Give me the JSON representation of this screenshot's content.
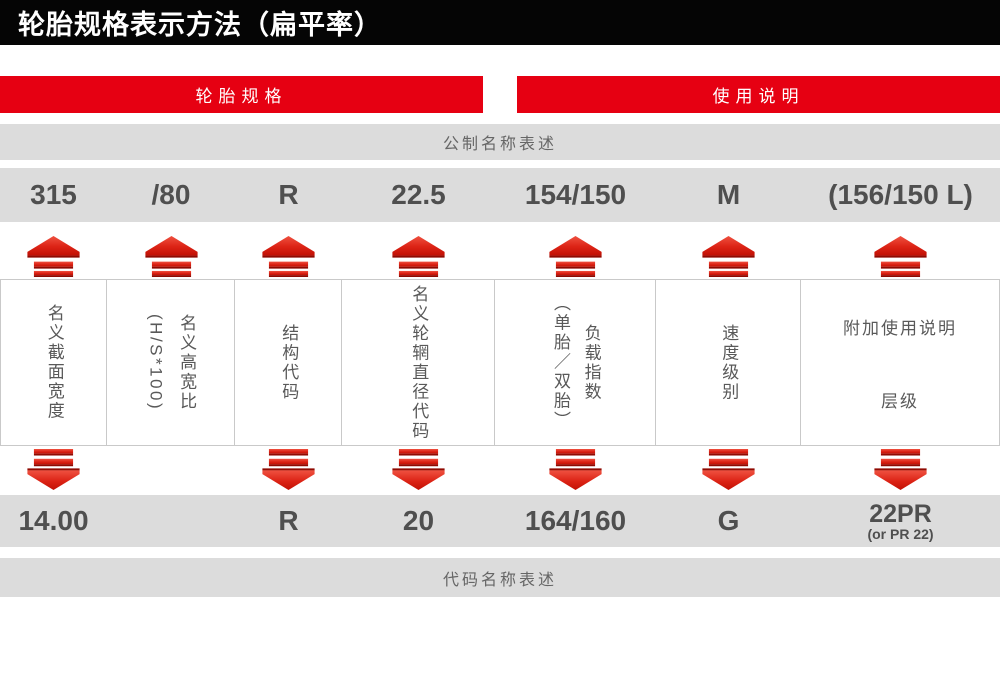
{
  "title": "轮胎规格表示方法（扁平率）",
  "sections": {
    "spec_header": "轮胎规格",
    "usage_header": "使用说明",
    "metric_row_label": "公制名称表述",
    "code_row_label": "代码名称表述"
  },
  "colors": {
    "red": "#e60012",
    "black": "#050505",
    "gray_band": "#dcdcdc",
    "value_text": "#4f4f4f"
  },
  "icons": {
    "up_arrow": "red-up-arrow-icon",
    "down_arrow": "red-down-arrow-icon"
  },
  "columns": [
    {
      "id": "section-width",
      "metric": "315",
      "box_label": "名义截面宽度",
      "box_orientation": "vertical",
      "code": "14.00",
      "code_sub": "",
      "down_arrow": true
    },
    {
      "id": "aspect-ratio",
      "metric": "/80",
      "box_label": "名义高宽比\n(H/S*100)",
      "box_orientation": "vertical",
      "code": "",
      "code_sub": "",
      "down_arrow": false
    },
    {
      "id": "construction",
      "metric": "R",
      "box_label": "结构代码",
      "box_orientation": "vertical",
      "code": "R",
      "code_sub": "",
      "down_arrow": true
    },
    {
      "id": "rim-diameter",
      "metric": "22.5",
      "box_label": "名义轮辋直径代码",
      "box_orientation": "vertical",
      "code": "20",
      "code_sub": "",
      "down_arrow": true
    },
    {
      "id": "load-index",
      "metric": "154/150",
      "box_label": "负载指数\n（单胎／双胎）",
      "box_orientation": "vertical",
      "code": "164/160",
      "code_sub": "",
      "down_arrow": true
    },
    {
      "id": "speed-symbol",
      "metric": "M",
      "box_label": "速度级别",
      "box_orientation": "vertical",
      "code": "G",
      "code_sub": "",
      "down_arrow": true
    },
    {
      "id": "additional-use",
      "metric": "(156/150 L)",
      "box_label": "附加使用说明\n层级",
      "box_orientation": "horizontal",
      "code": "22PR",
      "code_sub": "(or PR 22)",
      "down_arrow": true
    }
  ]
}
